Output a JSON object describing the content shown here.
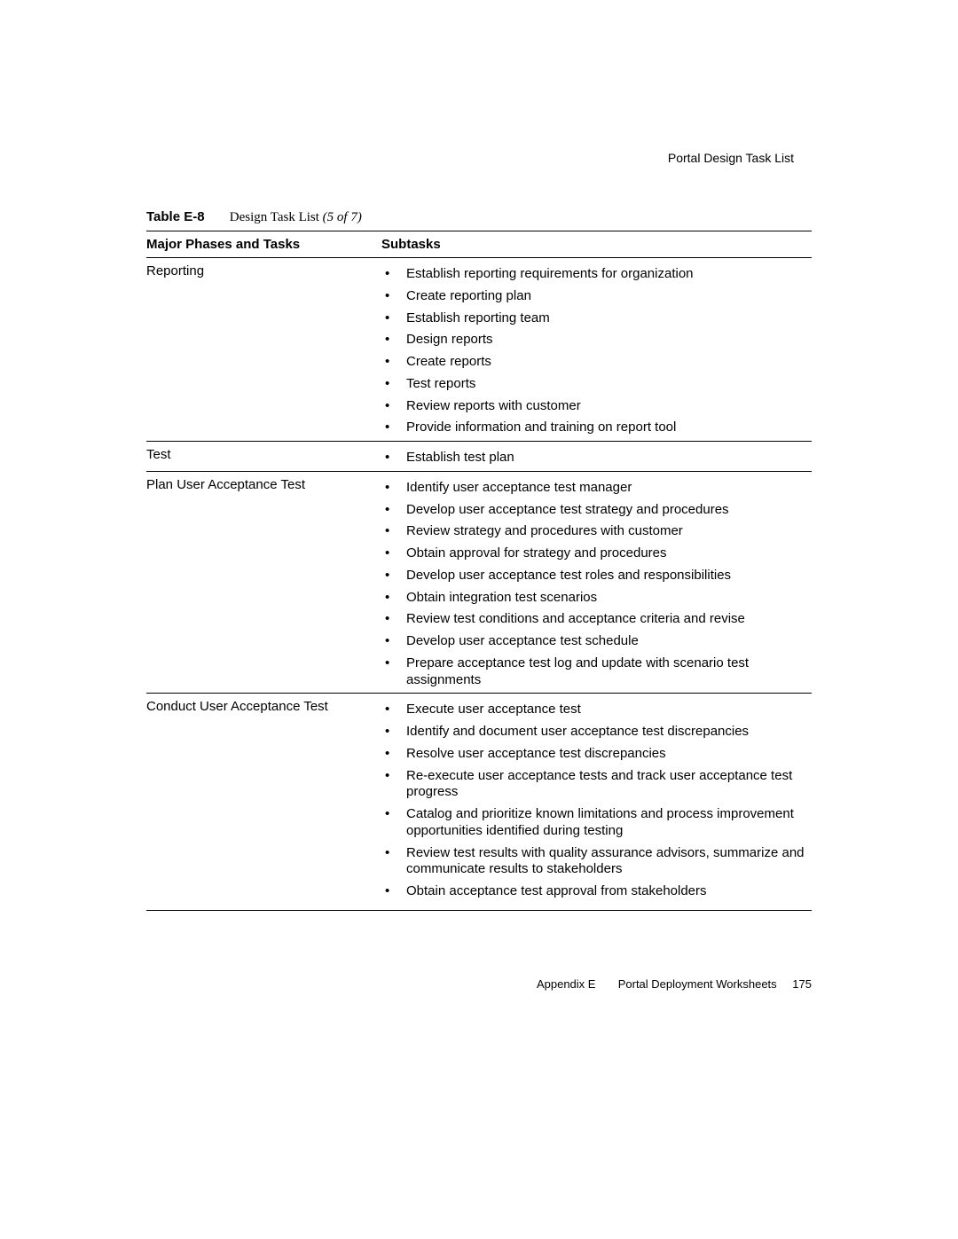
{
  "runningHead": "Portal Design Task List",
  "caption": {
    "label": "Table E-8",
    "title": "Design Task List",
    "paren": "(5 of 7)"
  },
  "columns": {
    "phase": "Major Phases and Tasks",
    "sub": "Subtasks"
  },
  "rows": [
    {
      "phase": "Reporting",
      "subtasks": [
        "Establish reporting requirements for organization",
        "Create reporting plan",
        "Establish reporting team",
        "Design reports",
        "Create reports",
        "Test reports",
        "Review reports with customer",
        "Provide information and training on report tool"
      ]
    },
    {
      "phase": "Test",
      "subtasks": [
        "Establish test plan"
      ]
    },
    {
      "phase": "Plan User Acceptance Test",
      "subtasks": [
        "Identify user acceptance test manager",
        "Develop user acceptance test strategy and procedures",
        "Review strategy and procedures with customer",
        "Obtain approval for strategy and procedures",
        "Develop user acceptance test roles and responsibilities",
        "Obtain integration test scenarios",
        "Review test conditions and acceptance criteria and revise",
        "Develop user acceptance test schedule",
        "Prepare acceptance test log and update with scenario test assignments"
      ]
    },
    {
      "phase": "Conduct User Acceptance Test",
      "subtasks": [
        "Execute user acceptance test",
        "Identify and document user acceptance test discrepancies",
        "Resolve user acceptance test discrepancies",
        "Re-execute user acceptance tests and track user acceptance test progress",
        "Catalog and prioritize known limitations and process improvement opportunities identified during testing",
        "Review test results with quality assurance advisors, summarize and communicate results to stakeholders",
        "Obtain acceptance test approval from stakeholders"
      ]
    }
  ],
  "footer": {
    "appendix": "Appendix E",
    "title": "Portal Deployment Worksheets",
    "page": "175"
  }
}
